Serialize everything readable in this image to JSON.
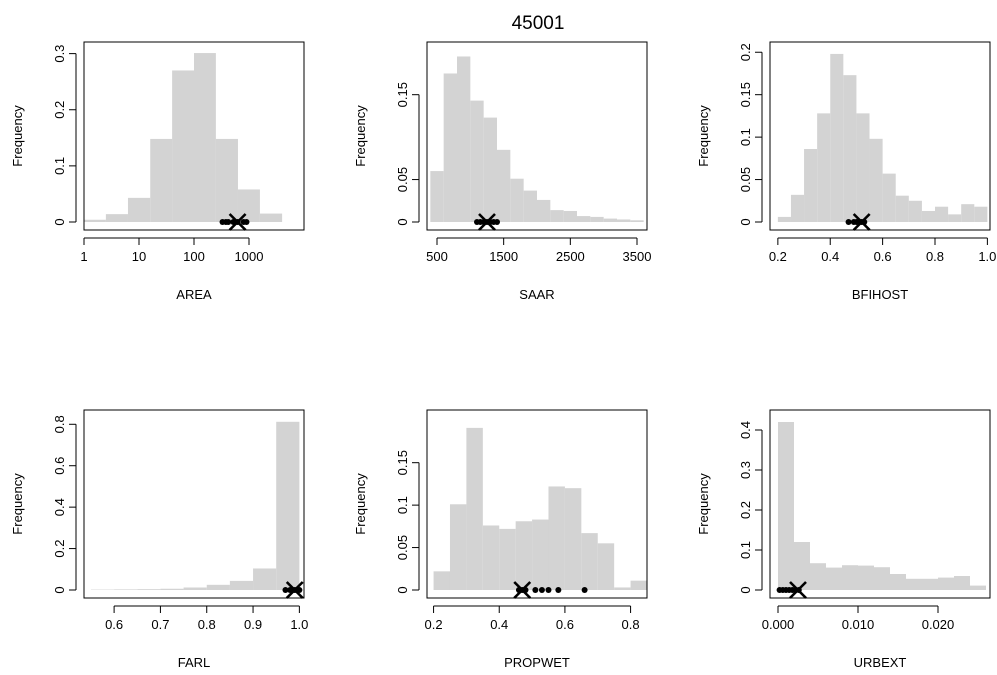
{
  "figure_title": "45001",
  "colors": {
    "bar_fill": "#d3d3d3",
    "marker": "#000000"
  },
  "chart_data": [
    {
      "type": "bar",
      "xlabel": "AREA",
      "ylabel": "Frequency",
      "xscale": "log10",
      "xlim": [
        1,
        10000
      ],
      "ylim": [
        0,
        0.31
      ],
      "xticks": [
        {
          "v": 1,
          "label": "1"
        },
        {
          "v": 10,
          "label": "10"
        },
        {
          "v": 100,
          "label": "100"
        },
        {
          "v": 1000,
          "label": "1000"
        }
      ],
      "yticks": [
        {
          "v": 0,
          "label": "0"
        },
        {
          "v": 0.1,
          "label": "0.1"
        },
        {
          "v": 0.2,
          "label": "0.2"
        },
        {
          "v": 0.3,
          "label": "0.3"
        }
      ],
      "bins": [
        [
          1,
          2.5,
          0.004
        ],
        [
          2.5,
          6.3,
          0.014
        ],
        [
          6.3,
          16,
          0.043
        ],
        [
          16,
          40,
          0.148
        ],
        [
          40,
          100,
          0.27
        ],
        [
          100,
          250,
          0.301
        ],
        [
          250,
          630,
          0.148
        ],
        [
          630,
          1580,
          0.058
        ],
        [
          1580,
          4000,
          0.015
        ]
      ],
      "pooled_points": [
        330,
        380,
        420,
        520,
        560,
        620,
        800,
        900
      ],
      "target_x": 620
    },
    {
      "type": "bar",
      "xlabel": "SAAR",
      "ylabel": "Frequency",
      "xscale": "linear",
      "xlim": [
        350,
        3650
      ],
      "ylim": [
        0,
        0.205
      ],
      "xticks": [
        {
          "v": 500,
          "label": "500"
        },
        {
          "v": 1500,
          "label": "1500"
        },
        {
          "v": 2500,
          "label": "2500"
        },
        {
          "v": 3500,
          "label": "3500"
        }
      ],
      "yticks": [
        {
          "v": 0,
          "label": "0"
        },
        {
          "v": 0.05,
          "label": "0.05"
        },
        {
          "v": 0.15,
          "label": "0.15"
        }
      ],
      "bins": [
        [
          400,
          600,
          0.06
        ],
        [
          600,
          800,
          0.175
        ],
        [
          800,
          1000,
          0.195
        ],
        [
          1000,
          1200,
          0.143
        ],
        [
          1200,
          1400,
          0.123
        ],
        [
          1400,
          1600,
          0.085
        ],
        [
          1600,
          1800,
          0.051
        ],
        [
          1800,
          2000,
          0.037
        ],
        [
          2000,
          2200,
          0.026
        ],
        [
          2200,
          2400,
          0.014
        ],
        [
          2400,
          2600,
          0.013
        ],
        [
          2600,
          2800,
          0.007
        ],
        [
          2800,
          3000,
          0.006
        ],
        [
          3000,
          3200,
          0.004
        ],
        [
          3200,
          3400,
          0.003
        ],
        [
          3400,
          3600,
          0.002
        ]
      ],
      "pooled_points": [
        1100,
        1150,
        1200,
        1250,
        1300,
        1350,
        1400
      ],
      "target_x": 1250
    },
    {
      "type": "bar",
      "xlabel": "BFIHOST",
      "ylabel": "Frequency",
      "xscale": "linear",
      "xlim": [
        0.17,
        1.01
      ],
      "ylim": [
        0,
        0.205
      ],
      "xticks": [
        {
          "v": 0.2,
          "label": "0.2"
        },
        {
          "v": 0.4,
          "label": "0.4"
        },
        {
          "v": 0.6,
          "label": "0.6"
        },
        {
          "v": 0.8,
          "label": "0.8"
        },
        {
          "v": 1.0,
          "label": "1.0"
        }
      ],
      "yticks": [
        {
          "v": 0,
          "label": "0"
        },
        {
          "v": 0.05,
          "label": "0.05"
        },
        {
          "v": 0.1,
          "label": "0.1"
        },
        {
          "v": 0.15,
          "label": "0.15"
        },
        {
          "v": 0.2,
          "label": "0.2"
        }
      ],
      "bins": [
        [
          0.2,
          0.25,
          0.006
        ],
        [
          0.25,
          0.3,
          0.032
        ],
        [
          0.3,
          0.35,
          0.086
        ],
        [
          0.35,
          0.4,
          0.128
        ],
        [
          0.4,
          0.45,
          0.198
        ],
        [
          0.45,
          0.5,
          0.173
        ],
        [
          0.5,
          0.55,
          0.128
        ],
        [
          0.55,
          0.6,
          0.098
        ],
        [
          0.6,
          0.65,
          0.057
        ],
        [
          0.65,
          0.7,
          0.031
        ],
        [
          0.7,
          0.75,
          0.025
        ],
        [
          0.75,
          0.8,
          0.013
        ],
        [
          0.8,
          0.85,
          0.018
        ],
        [
          0.85,
          0.9,
          0.009
        ],
        [
          0.9,
          0.95,
          0.021
        ],
        [
          0.95,
          1.0,
          0.018
        ]
      ],
      "pooled_points": [
        0.47,
        0.49,
        0.5,
        0.51,
        0.52,
        0.53
      ],
      "target_x": 0.52
    },
    {
      "type": "bar",
      "xlabel": "FARL",
      "ylabel": "Frequency",
      "xscale": "linear",
      "xlim": [
        0.535,
        1.01
      ],
      "ylim": [
        0,
        0.84
      ],
      "xticks": [
        {
          "v": 0.6,
          "label": "0.6"
        },
        {
          "v": 0.7,
          "label": "0.7"
        },
        {
          "v": 0.8,
          "label": "0.8"
        },
        {
          "v": 0.9,
          "label": "0.9"
        },
        {
          "v": 1.0,
          "label": "1.0"
        }
      ],
      "yticks": [
        {
          "v": 0,
          "label": "0"
        },
        {
          "v": 0.2,
          "label": "0.2"
        },
        {
          "v": 0.4,
          "label": "0.4"
        },
        {
          "v": 0.6,
          "label": "0.6"
        },
        {
          "v": 0.8,
          "label": "0.8"
        }
      ],
      "bins": [
        [
          0.55,
          0.6,
          0.002
        ],
        [
          0.6,
          0.65,
          0.003
        ],
        [
          0.65,
          0.7,
          0.004
        ],
        [
          0.7,
          0.75,
          0.006
        ],
        [
          0.75,
          0.8,
          0.012
        ],
        [
          0.8,
          0.85,
          0.025
        ],
        [
          0.85,
          0.9,
          0.044
        ],
        [
          0.9,
          0.95,
          0.104
        ],
        [
          0.95,
          1.0,
          0.812
        ]
      ],
      "pooled_points": [
        0.97,
        0.98,
        0.985,
        0.99,
        0.995,
        1.0
      ],
      "target_x": 0.99
    },
    {
      "type": "bar",
      "xlabel": "PROPWET",
      "ylabel": "Frequency",
      "xscale": "linear",
      "xlim": [
        0.18,
        0.85
      ],
      "ylim": [
        0,
        0.205
      ],
      "xticks": [
        {
          "v": 0.2,
          "label": "0.2"
        },
        {
          "v": 0.4,
          "label": "0.4"
        },
        {
          "v": 0.6,
          "label": "0.6"
        },
        {
          "v": 0.8,
          "label": "0.8"
        }
      ],
      "yticks": [
        {
          "v": 0,
          "label": "0"
        },
        {
          "v": 0.05,
          "label": "0.05"
        },
        {
          "v": 0.1,
          "label": "0.1"
        },
        {
          "v": 0.15,
          "label": "0.15"
        }
      ],
      "bins": [
        [
          0.2,
          0.25,
          0.022
        ],
        [
          0.25,
          0.3,
          0.101
        ],
        [
          0.3,
          0.35,
          0.191
        ],
        [
          0.35,
          0.4,
          0.076
        ],
        [
          0.4,
          0.45,
          0.072
        ],
        [
          0.45,
          0.5,
          0.081
        ],
        [
          0.5,
          0.55,
          0.083
        ],
        [
          0.55,
          0.6,
          0.122
        ],
        [
          0.6,
          0.65,
          0.12
        ],
        [
          0.65,
          0.7,
          0.067
        ],
        [
          0.7,
          0.75,
          0.055
        ],
        [
          0.75,
          0.8,
          0.003
        ],
        [
          0.8,
          0.85,
          0.011
        ]
      ],
      "pooled_points": [
        0.46,
        0.47,
        0.48,
        0.51,
        0.53,
        0.55,
        0.58,
        0.66
      ],
      "target_x": 0.47
    },
    {
      "type": "bar",
      "xlabel": "URBEXT",
      "ylabel": "Frequency",
      "xscale": "linear",
      "xlim": [
        -0.001,
        0.0265
      ],
      "ylim": [
        0,
        0.435
      ],
      "xticks": [
        {
          "v": 0,
          "label": "0.000"
        },
        {
          "v": 0.01,
          "label": "0.010"
        },
        {
          "v": 0.02,
          "label": "0.020"
        }
      ],
      "yticks": [
        {
          "v": 0,
          "label": "0"
        },
        {
          "v": 0.1,
          "label": "0.1"
        },
        {
          "v": 0.2,
          "label": "0.2"
        },
        {
          "v": 0.3,
          "label": "0.3"
        },
        {
          "v": 0.4,
          "label": "0.4"
        }
      ],
      "bins": [
        [
          0,
          0.002,
          0.42
        ],
        [
          0.002,
          0.004,
          0.12
        ],
        [
          0.004,
          0.006,
          0.067
        ],
        [
          0.006,
          0.008,
          0.056
        ],
        [
          0.008,
          0.01,
          0.062
        ],
        [
          0.01,
          0.012,
          0.061
        ],
        [
          0.012,
          0.014,
          0.057
        ],
        [
          0.014,
          0.016,
          0.04
        ],
        [
          0.016,
          0.018,
          0.028
        ],
        [
          0.018,
          0.02,
          0.028
        ],
        [
          0.02,
          0.022,
          0.031
        ],
        [
          0.022,
          0.024,
          0.035
        ],
        [
          0.024,
          0.026,
          0.011
        ]
      ],
      "pooled_points": [
        0.0002,
        0.0006,
        0.001,
        0.0014,
        0.0018,
        0.0022,
        0.0026
      ],
      "target_x": 0.0025
    }
  ]
}
